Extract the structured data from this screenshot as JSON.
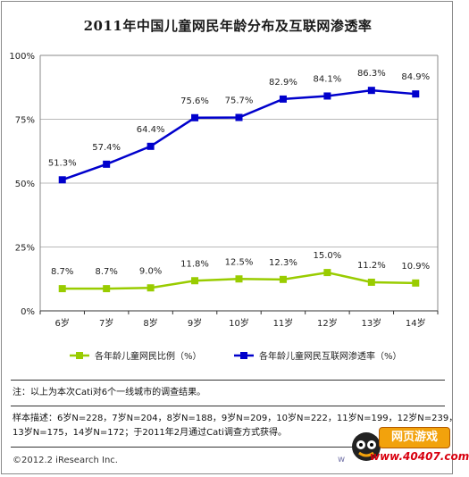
{
  "title": "2011年中国儿童网民年龄分布及互联网渗透率",
  "chart_data": {
    "type": "line",
    "title": "2011年中国儿童网民年龄分布及互联网渗透率",
    "categories": [
      "6岁",
      "7岁",
      "8岁",
      "9岁",
      "10岁",
      "11岁",
      "12岁",
      "13岁",
      "14岁"
    ],
    "ylim": [
      0,
      100
    ],
    "yticks": [
      "0%",
      "25%",
      "50%",
      "75%",
      "100%"
    ],
    "ytick_values": [
      0,
      25,
      50,
      75,
      100
    ],
    "grid": "horizontal",
    "legend_position": "bottom",
    "series": [
      {
        "name": "各年龄儿童网民比例（%）",
        "color": "#99cc00",
        "marker": "square",
        "values": [
          8.7,
          8.7,
          9.0,
          11.8,
          12.5,
          12.3,
          15.0,
          11.2,
          10.9
        ],
        "labels": [
          "8.7%",
          "8.7%",
          "9.0%",
          "11.8%",
          "12.5%",
          "12.3%",
          "15.0%",
          "11.2%",
          "10.9%"
        ]
      },
      {
        "name": "各年龄儿童网民互联网渗透率（%）",
        "color": "#0000cc",
        "marker": "square",
        "values": [
          51.3,
          57.4,
          64.4,
          75.6,
          75.7,
          82.9,
          84.1,
          86.3,
          84.9
        ],
        "labels": [
          "51.3%",
          "57.4%",
          "64.4%",
          "75.6%",
          "75.7%",
          "82.9%",
          "84.1%",
          "86.3%",
          "84.9%"
        ]
      }
    ]
  },
  "note": "注：以上为本次Cati对6个一线城市的调查结果。",
  "sample": {
    "line1": "样本描述：6岁N=228，7岁N=204，8岁N=188，9岁N=209，10岁N=222，11岁N=199，12岁N=239，",
    "line2": "13岁N=175，14岁N=172；于2011年2月通过Cati调查方式获得。"
  },
  "credit": "©2012.2 iResearch Inc.",
  "watermark": {
    "top": "网页游戏",
    "bottom": "www.40407.com",
    "partial": "w"
  }
}
